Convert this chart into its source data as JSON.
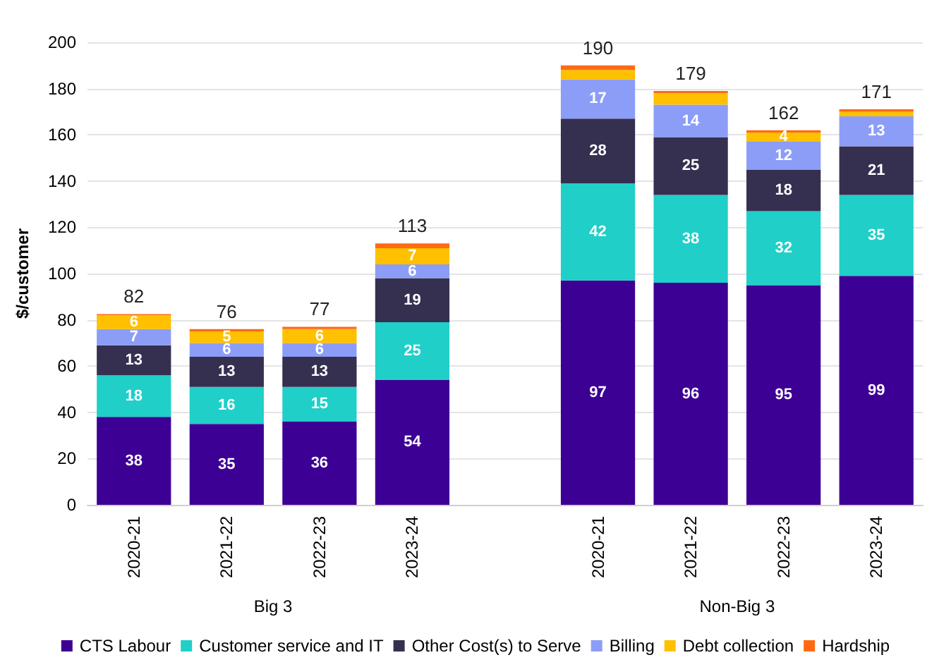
{
  "chart_data": {
    "type": "bar",
    "stacked": true,
    "ylabel": "$/customer",
    "categories": [
      "2020-21",
      "2021-22",
      "2022-23",
      "2023-24",
      null,
      "2020-21",
      "2021-22",
      "2022-23",
      "2023-24"
    ],
    "annotations": [
      "Big 3",
      "Non-Big 3"
    ],
    "series": [
      {
        "name": "CTS Labour",
        "color": "#3d0094",
        "values": [
          38,
          35,
          36,
          54,
          null,
          97,
          96,
          95,
          99
        ],
        "value_labels": [
          "38",
          "35",
          "36",
          "54",
          null,
          "97",
          "96",
          "95",
          "99"
        ]
      },
      {
        "name": "Customer service and IT",
        "color": "#1fcfc8",
        "values": [
          18,
          16,
          15,
          25,
          null,
          42,
          38,
          32,
          35
        ],
        "value_labels": [
          "18",
          "16",
          "15",
          "25",
          null,
          "42",
          "38",
          "32",
          "35"
        ]
      },
      {
        "name": "Other Cost(s) to Serve",
        "color": "#352f50",
        "values": [
          13,
          13,
          13,
          19,
          null,
          28,
          25,
          18,
          21
        ],
        "value_labels": [
          "13",
          "13",
          "13",
          "19",
          null,
          "28",
          "25",
          "18",
          "21"
        ]
      },
      {
        "name": "Billing",
        "color": "#8c9df7",
        "values": [
          7,
          6,
          6,
          6,
          null,
          17,
          14,
          12,
          13
        ],
        "value_labels": [
          "7",
          "6",
          "6",
          "6",
          null,
          "17",
          "14",
          "12",
          "13"
        ]
      },
      {
        "name": "Debt collection",
        "color": "#ffc000",
        "values": [
          6,
          5,
          6,
          7,
          null,
          4,
          5,
          4,
          2
        ],
        "value_labels": [
          "6",
          "5",
          "6",
          "7",
          null,
          null,
          null,
          "4",
          null
        ]
      },
      {
        "name": "Hardship",
        "color": "#ff6a13",
        "values": [
          0.5,
          1,
          1,
          2,
          null,
          2,
          1,
          1,
          1
        ]
      }
    ],
    "totals": [
      "82",
      "76",
      "77",
      "113",
      null,
      "190",
      "179",
      "162",
      "171"
    ],
    "ylim": [
      0,
      200
    ],
    "yticks": [
      0,
      20,
      40,
      60,
      80,
      100,
      120,
      140,
      160,
      180,
      200
    ],
    "grid": "y",
    "legend": "bottom"
  }
}
